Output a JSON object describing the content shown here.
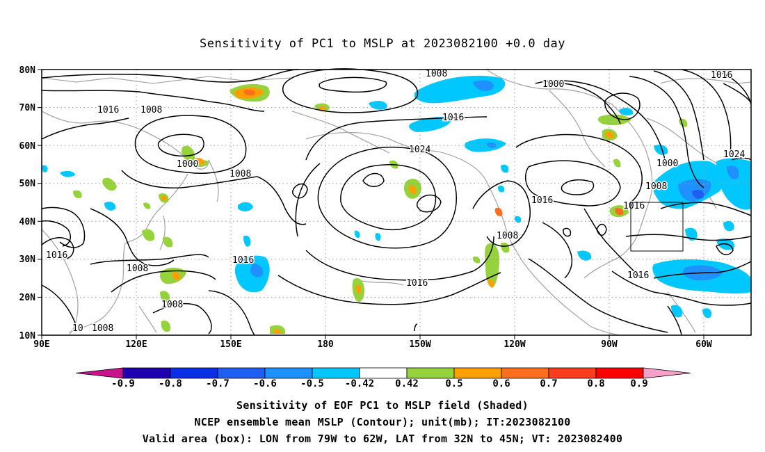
{
  "title": "Sensitivity of PC1 to MSLP at 2023082100 +0.0 day",
  "axes": {
    "lon_ticks": [
      "90E",
      "120E",
      "150E",
      "180",
      "150W",
      "120W",
      "90W",
      "60W"
    ],
    "lat_ticks": [
      "80N",
      "70N",
      "60N",
      "50N",
      "40N",
      "30N",
      "20N",
      "10N"
    ]
  },
  "colorbar": {
    "labels": [
      "-0.9",
      "-0.8",
      "-0.7",
      "-0.6",
      "-0.5",
      "-0.42",
      "0.42",
      "0.5",
      "0.6",
      "0.7",
      "0.8",
      "0.9"
    ],
    "colors": [
      "#1e00b0",
      "#0a2fe6",
      "#1e5ef0",
      "#1e90ff",
      "#00c8ff",
      "#ffffff",
      "#96d23c",
      "#ffa000",
      "#ff6e1e",
      "#ff3c1e",
      "#ff0000"
    ],
    "low_end_color": "#c8148c",
    "high_end_color": "#f5a0c8"
  },
  "contour_labels": [
    {
      "text": "1008"
    },
    {
      "text": "1016"
    },
    {
      "text": "1008"
    },
    {
      "text": "1000"
    },
    {
      "text": "1008"
    },
    {
      "text": "1016"
    },
    {
      "text": "1024"
    },
    {
      "text": "1000"
    },
    {
      "text": "1016"
    },
    {
      "text": "1000"
    },
    {
      "text": "1008"
    },
    {
      "text": "1016"
    },
    {
      "text": "1024"
    },
    {
      "text": "1016"
    },
    {
      "text": "1008"
    },
    {
      "text": "1016"
    },
    {
      "text": "1008"
    },
    {
      "text": "1016"
    },
    {
      "text": "1008"
    },
    {
      "text": "1016"
    },
    {
      "text": "1008"
    },
    {
      "text": "1016"
    },
    {
      "text": "10"
    }
  ],
  "footer": {
    "line1": "Sensitivity of EOF PC1 to MSLP field (Shaded)",
    "line2": "NCEP ensemble mean MSLP (Contour); unit(mb); IT:2023082100",
    "line3": "Valid area (box): LON from 79W to 62W, LAT from 32N to 45N; VT: 2023082400"
  }
}
